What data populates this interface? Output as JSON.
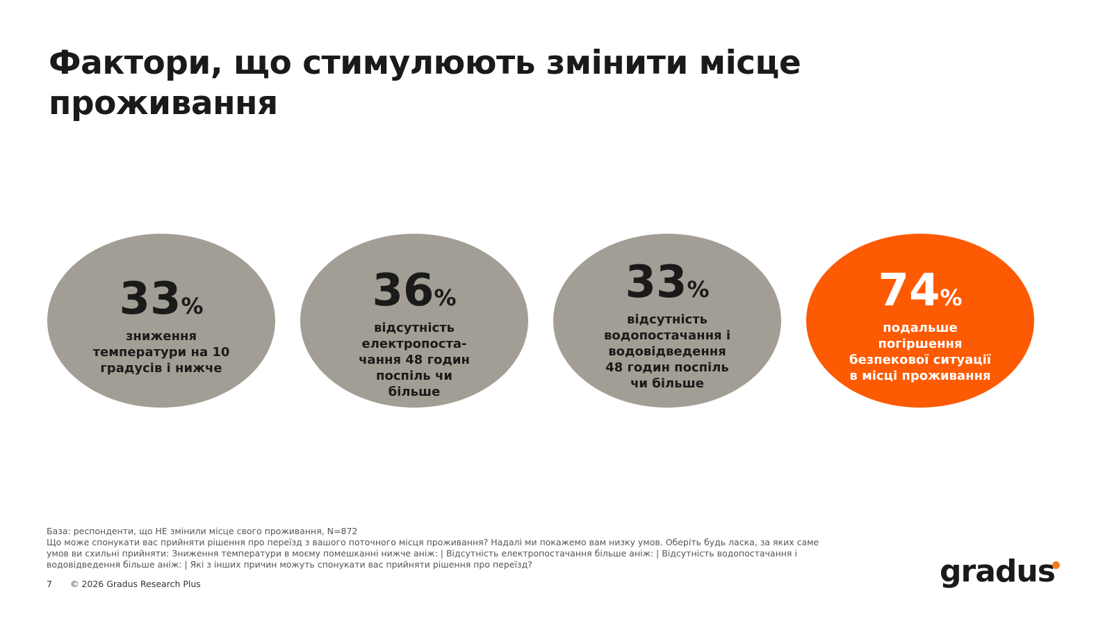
{
  "title": "Фактори, що стимулюють змінити місце проживання",
  "colors": {
    "neutral": "#a39e95",
    "accent": "#fc5a03",
    "logo_dot": "#f47a20"
  },
  "factors": [
    {
      "value": "33",
      "unit": "%",
      "label": "зниження температури на 10 градусів і нижче",
      "highlight": false
    },
    {
      "value": "36",
      "unit": "%",
      "label": "відсутність електропоста-чання 48 годин поспіль чи більше",
      "highlight": false
    },
    {
      "value": "33",
      "unit": "%",
      "label": "відсутність водопостачання і водовідведення 48 годин поспіль чи більше",
      "highlight": false
    },
    {
      "value": "74",
      "unit": "%",
      "label": "подальше погіршення безпекової ситуації в місці проживання",
      "highlight": true
    }
  ],
  "footer": {
    "base": "База: респонденти, що НЕ змінили місце свого проживання, N=872",
    "question": "Що може спонукати вас прийняти рішення про переїзд з вашого поточного місця проживання? Надалі ми покажемо вам низку умов. Оберіть будь ласка, за яких саме умов ви схильні прийняти: Зниження температури в моєму помешканні нижче аніж: | Відсутність електропостачання більше аніж: | Відсутність водопостачання і водовідведення більше аніж: | Які з інших причин можуть спонукати вас прийняти рішення про переїзд?",
    "page": "7",
    "copyright": "© 2026 Gradus Research Plus"
  },
  "logo": "gradus"
}
